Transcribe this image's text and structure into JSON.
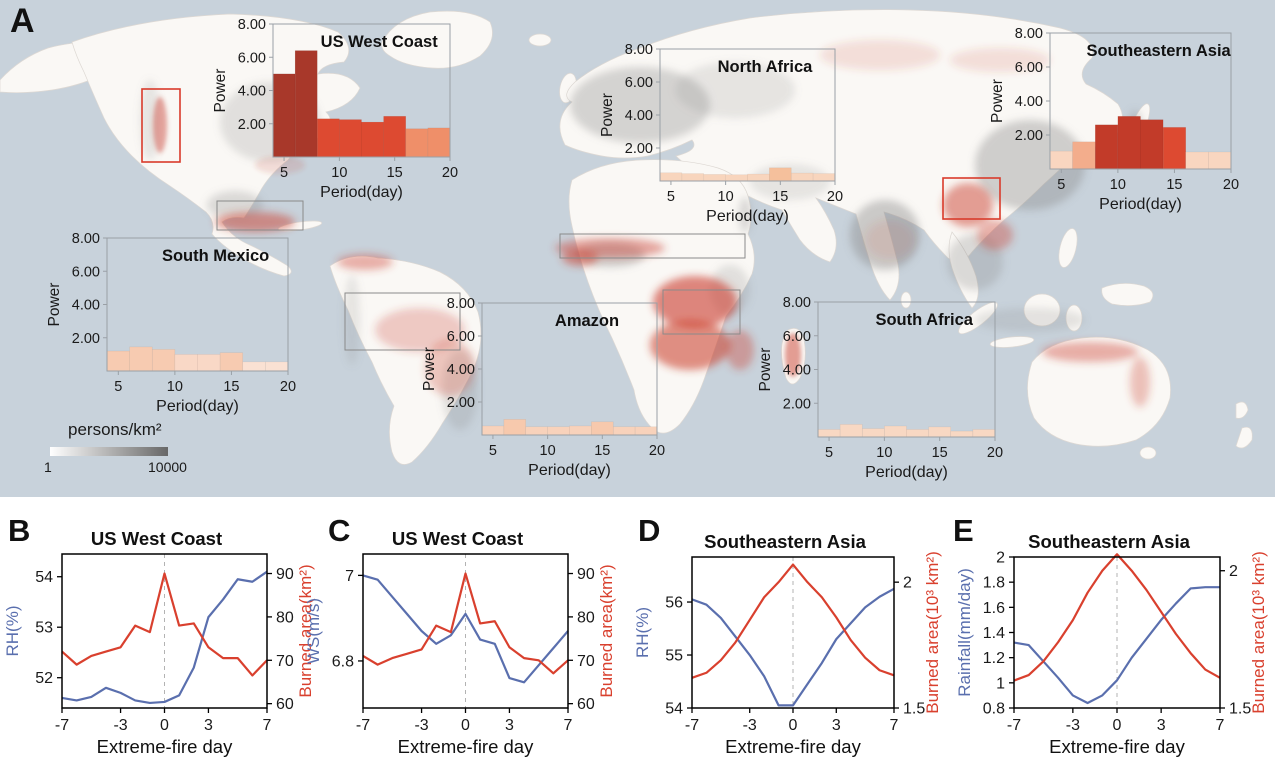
{
  "panel_a": {
    "label": "A",
    "legend": {
      "title": "persons/km²",
      "min": "1",
      "max": "10000"
    }
  },
  "panel_labels": {
    "b": "B",
    "c": "C",
    "d": "D",
    "e": "E"
  },
  "map": {
    "ocean_color": "#c8d2db",
    "land_color": "#faf8f5",
    "population_color": "#8a8a8a",
    "fire_color": "#cc4130",
    "highlight_box_red": "#d93b2b",
    "highlight_box_gray": "#8a8a8a"
  },
  "chart_data": [
    {
      "id": "inset-us-west-coast",
      "type": "bar",
      "title": "US West Coast",
      "xlabel": "Period(day)",
      "ylabel": "Power",
      "xticks": [
        5,
        10,
        15,
        20
      ],
      "yticks": [
        "2.00",
        "4.00",
        "6.00",
        "8.00"
      ],
      "xlim": [
        4,
        20
      ],
      "ylim": [
        0,
        8
      ],
      "bin_width": 2,
      "bin_starts": [
        4,
        6,
        8,
        10,
        12,
        14,
        16,
        18
      ],
      "values": [
        5.0,
        6.4,
        2.3,
        2.25,
        2.1,
        2.45,
        1.7,
        1.75
      ],
      "colors": [
        "#a8382a",
        "#a8382a",
        "#dd4a31",
        "#dd4a31",
        "#dd4a31",
        "#dd4a31",
        "#ef8f69",
        "#ef8f69"
      ]
    },
    {
      "id": "inset-north-africa",
      "type": "bar",
      "title": "North Africa",
      "xlabel": "Period(day)",
      "ylabel": "Power",
      "xticks": [
        5,
        10,
        15,
        20
      ],
      "yticks": [
        "2.00",
        "4.00",
        "6.00",
        "8.00"
      ],
      "xlim": [
        4,
        20
      ],
      "ylim": [
        0,
        8
      ],
      "bin_width": 2,
      "bin_starts": [
        4,
        6,
        8,
        10,
        12,
        14,
        16,
        18
      ],
      "values": [
        0.5,
        0.45,
        0.4,
        0.38,
        0.42,
        0.8,
        0.48,
        0.45
      ],
      "colors": [
        "#f8d5bd",
        "#f8d5bd",
        "#f8d5bd",
        "#f8d5bd",
        "#f8d5bd",
        "#f5c09c",
        "#f8d5bd",
        "#f8d5bd"
      ]
    },
    {
      "id": "inset-southeastern-asia",
      "type": "bar",
      "title": "Southeastern Asia",
      "xlabel": "Period(day)",
      "ylabel": "Power",
      "xticks": [
        5,
        10,
        15,
        20
      ],
      "yticks": [
        "2.00",
        "4.00",
        "6.00",
        "8.00"
      ],
      "xlim": [
        4,
        20
      ],
      "ylim": [
        0,
        8
      ],
      "bin_width": 2,
      "bin_starts": [
        4,
        6,
        8,
        10,
        12,
        14,
        16,
        18
      ],
      "values": [
        1.05,
        1.6,
        2.6,
        3.1,
        2.9,
        2.45,
        1.0,
        1.0
      ],
      "colors": [
        "#f9d6c0",
        "#f3ad8c",
        "#c23b29",
        "#c23b29",
        "#c23b29",
        "#dd4a31",
        "#f9d6c0",
        "#f9d6c0"
      ]
    },
    {
      "id": "inset-south-mexico",
      "type": "bar",
      "title": "South Mexico",
      "xlabel": "Period(day)",
      "ylabel": "Power",
      "xticks": [
        5,
        10,
        15,
        20
      ],
      "yticks": [
        "2.00",
        "4.00",
        "6.00",
        "8.00"
      ],
      "xlim": [
        4,
        20
      ],
      "ylim": [
        0,
        8
      ],
      "bin_width": 2,
      "bin_starts": [
        4,
        6,
        8,
        10,
        12,
        14,
        16,
        18
      ],
      "values": [
        1.2,
        1.45,
        1.3,
        1.0,
        1.0,
        1.1,
        0.55,
        0.55
      ],
      "colors": [
        "#f7cbb1",
        "#f7cbb1",
        "#f7cbb1",
        "#f9d8c6",
        "#f9d8c6",
        "#f7cbb1",
        "#fae1d3",
        "#fae1d3"
      ]
    },
    {
      "id": "inset-amazon",
      "type": "bar",
      "title": "Amazon",
      "xlabel": "Period(day)",
      "ylabel": "Power",
      "xticks": [
        5,
        10,
        15,
        20
      ],
      "yticks": [
        "2.00",
        "4.00",
        "6.00",
        "8.00"
      ],
      "xlim": [
        4,
        20
      ],
      "ylim": [
        0,
        8
      ],
      "bin_width": 2,
      "bin_starts": [
        4,
        6,
        8,
        10,
        12,
        14,
        16,
        18
      ],
      "values": [
        0.55,
        0.95,
        0.5,
        0.5,
        0.55,
        0.8,
        0.5,
        0.5
      ],
      "colors": [
        "#f8d2bb",
        "#f7c9ad",
        "#f8d2bb",
        "#f8d2bb",
        "#f8d2bb",
        "#f7c9ad",
        "#f8d2bb",
        "#f8d2bb"
      ]
    },
    {
      "id": "inset-south-africa",
      "type": "bar",
      "title": "South Africa",
      "xlabel": "Period(day)",
      "ylabel": "Power",
      "xticks": [
        5,
        10,
        15,
        20
      ],
      "yticks": [
        "2.00",
        "4.00",
        "6.00",
        "8.00"
      ],
      "xlim": [
        4,
        20
      ],
      "ylim": [
        0,
        8
      ],
      "bin_width": 2,
      "bin_starts": [
        4,
        6,
        8,
        10,
        12,
        14,
        16,
        18
      ],
      "values": [
        0.45,
        0.75,
        0.5,
        0.65,
        0.45,
        0.6,
        0.35,
        0.45
      ],
      "colors": [
        "#f8d8c3",
        "#f8d8c3",
        "#f8d8c3",
        "#f8d8c3",
        "#f8d8c3",
        "#f8d8c3",
        "#f8d8c3",
        "#f8d8c3"
      ]
    },
    {
      "id": "panel-b",
      "type": "line",
      "title": "US West Coast",
      "xlabel": "Extreme-fire day",
      "xlim": [
        -7,
        7
      ],
      "xticks": [
        -7,
        -3,
        0,
        3,
        7
      ],
      "vline_x": 0,
      "x": [
        -7,
        -6,
        -5,
        -4,
        -3,
        -2,
        -1,
        0,
        1,
        2,
        3,
        4,
        5,
        6,
        7
      ],
      "left": {
        "label": "RH(%)",
        "color": "#5a6fae",
        "ticks": [
          52,
          53,
          54
        ],
        "ylim": [
          51.4,
          54.45
        ],
        "values": [
          51.6,
          51.55,
          51.62,
          51.8,
          51.7,
          51.55,
          51.5,
          51.52,
          51.65,
          52.2,
          53.2,
          53.55,
          53.95,
          53.9,
          54.1
        ]
      },
      "right": {
        "label": "Burned area(km²)",
        "color": "#d9402e",
        "ticks": [
          60,
          70,
          80,
          90
        ],
        "ylim": [
          59,
          94.5
        ],
        "values": [
          72,
          69,
          71,
          72,
          73,
          78,
          76.5,
          90,
          78,
          78.5,
          73,
          70.5,
          70.5,
          66.5,
          70
        ]
      }
    },
    {
      "id": "panel-c",
      "type": "line",
      "title": "US West Coast",
      "xlabel": "Extreme-fire day",
      "xlim": [
        -7,
        7
      ],
      "xticks": [
        -7,
        -3,
        0,
        3,
        7
      ],
      "vline_x": 0,
      "x": [
        -7,
        -6,
        -5,
        -4,
        -3,
        -2,
        -1,
        0,
        1,
        2,
        3,
        4,
        5,
        6,
        7
      ],
      "left": {
        "label": "WS(m/s)",
        "color": "#5a6fae",
        "ticks": [
          6.8,
          7
        ],
        "ylim": [
          6.69,
          7.05
        ],
        "values": [
          7.0,
          6.99,
          6.95,
          6.91,
          6.87,
          6.84,
          6.86,
          6.91,
          6.85,
          6.84,
          6.76,
          6.75,
          6.79,
          6.83,
          6.87
        ]
      },
      "right": {
        "label": "Burned area(km²)",
        "color": "#d9402e",
        "ticks": [
          60,
          70,
          80,
          90
        ],
        "ylim": [
          59,
          94.5
        ],
        "values": [
          71,
          69,
          70.5,
          71.5,
          72.5,
          78,
          76.5,
          90,
          78.5,
          79,
          73,
          70.5,
          70,
          67,
          70
        ]
      }
    },
    {
      "id": "panel-d",
      "type": "line",
      "title": "Southeastern Asia",
      "xlabel": "Extreme-fire day",
      "xlim": [
        -7,
        7
      ],
      "xticks": [
        -7,
        -3,
        0,
        3,
        7
      ],
      "vline_x": 0,
      "x": [
        -7,
        -6,
        -5,
        -4,
        -3,
        -2,
        -1,
        0,
        1,
        2,
        3,
        4,
        5,
        6,
        7
      ],
      "left": {
        "label": "RH(%)",
        "color": "#5a6fae",
        "ticks": [
          54,
          55,
          56
        ],
        "ylim": [
          54.0,
          56.85
        ],
        "values": [
          56.05,
          55.95,
          55.7,
          55.35,
          55.0,
          54.6,
          54.05,
          54.05,
          54.45,
          54.85,
          55.3,
          55.6,
          55.9,
          56.1,
          56.25
        ]
      },
      "right": {
        "label": "Burned area(10³ km²)",
        "color": "#d9402e",
        "ticks": [
          1.5,
          2
        ],
        "ylim": [
          1.5,
          2.1
        ],
        "values": [
          1.62,
          1.64,
          1.69,
          1.76,
          1.85,
          1.94,
          2.0,
          2.07,
          2.0,
          1.94,
          1.86,
          1.77,
          1.7,
          1.65,
          1.63
        ]
      }
    },
    {
      "id": "panel-e",
      "type": "line",
      "title": "Southeastern Asia",
      "xlabel": "Extreme-fire day",
      "xlim": [
        -7,
        7
      ],
      "xticks": [
        -7,
        -3,
        0,
        3,
        7
      ],
      "vline_x": 0,
      "x": [
        -7,
        -6,
        -5,
        -4,
        -3,
        -2,
        -1,
        0,
        1,
        2,
        3,
        4,
        5,
        6,
        7
      ],
      "left": {
        "label": "Rainfall(mm/day)",
        "color": "#5a6fae",
        "ticks": [
          0.8,
          1,
          1.2,
          1.4,
          1.6,
          1.8,
          2
        ],
        "ylim": [
          0.8,
          2.0
        ],
        "values": [
          1.32,
          1.3,
          1.17,
          1.04,
          0.9,
          0.84,
          0.9,
          1.02,
          1.2,
          1.35,
          1.5,
          1.63,
          1.75,
          1.76,
          1.76
        ]
      },
      "right": {
        "label": "Burned area(10³ km²)",
        "color": "#d9402e",
        "ticks": [
          1.5,
          2
        ],
        "ylim": [
          1.5,
          2.05
        ],
        "values": [
          1.6,
          1.62,
          1.67,
          1.74,
          1.82,
          1.92,
          2.0,
          2.06,
          2.0,
          1.93,
          1.85,
          1.77,
          1.7,
          1.64,
          1.61
        ]
      }
    }
  ]
}
